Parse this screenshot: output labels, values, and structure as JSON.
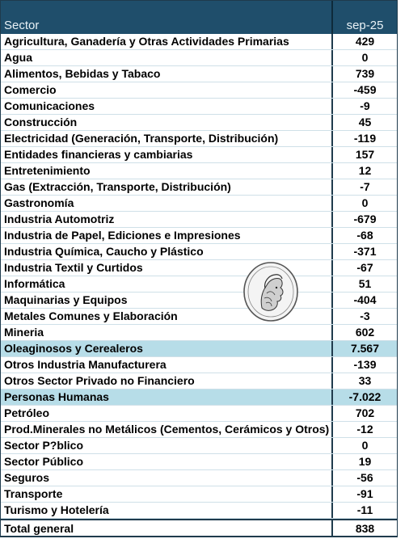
{
  "header": {
    "sector": "Sector",
    "period": "sep-25"
  },
  "rows": [
    {
      "sector": "Agricultura, Ganadería y Otras Actividades Primarias",
      "value": "429"
    },
    {
      "sector": "Agua",
      "value": "0"
    },
    {
      "sector": "Alimentos, Bebidas y Tabaco",
      "value": "739"
    },
    {
      "sector": "Comercio",
      "value": "-459"
    },
    {
      "sector": "Comunicaciones",
      "value": "-9"
    },
    {
      "sector": "Construcción",
      "value": "45"
    },
    {
      "sector": "Electricidad (Generación, Transporte, Distribución)",
      "value": "-119"
    },
    {
      "sector": "Entidades financieras y cambiarias",
      "value": "157"
    },
    {
      "sector": "Entretenimiento",
      "value": "12"
    },
    {
      "sector": "Gas (Extracción, Transporte, Distribución)",
      "value": "-7"
    },
    {
      "sector": "Gastronomía",
      "value": "0"
    },
    {
      "sector": "Industria Automotriz",
      "value": "-679"
    },
    {
      "sector": "Industria de Papel, Ediciones e Impresiones",
      "value": "-68"
    },
    {
      "sector": "Industria Química, Caucho y Plástico",
      "value": "-371"
    },
    {
      "sector": "Industria Textil y Curtidos",
      "value": "-67"
    },
    {
      "sector": "Informática",
      "value": "51"
    },
    {
      "sector": "Maquinarias y Equipos",
      "value": "-404"
    },
    {
      "sector": "Metales Comunes y Elaboración",
      "value": "-3"
    },
    {
      "sector": "Mineria",
      "value": "602"
    },
    {
      "sector": "Oleaginosos y Cerealeros",
      "value": "7.567"
    },
    {
      "sector": "Otros Industria Manufacturera",
      "value": "-139"
    },
    {
      "sector": "Otros Sector Privado no Financiero",
      "value": "33"
    },
    {
      "sector": "Personas Humanas",
      "value": "-7.022"
    },
    {
      "sector": "Petróleo",
      "value": "702"
    },
    {
      "sector": "Prod.Minerales no Metálicos (Cementos, Cerámicos y Otros)",
      "value": "-12"
    },
    {
      "sector": "Sector P?blico",
      "value": "0"
    },
    {
      "sector": "Sector Público",
      "value": "19"
    },
    {
      "sector": "Seguros",
      "value": "-56"
    },
    {
      "sector": "Transporte",
      "value": "-91"
    },
    {
      "sector": "Turismo y Hotelería",
      "value": "-11"
    }
  ],
  "highlighted": [
    "Oleaginosos y Cerealeros",
    "Personas Humanas"
  ],
  "total": {
    "label": "Total general",
    "value": "838"
  },
  "colors": {
    "header_bg": "#1f4e6b",
    "highlight": "#b7dde8"
  },
  "watermark": {
    "icon": "bcra-seal-icon"
  }
}
